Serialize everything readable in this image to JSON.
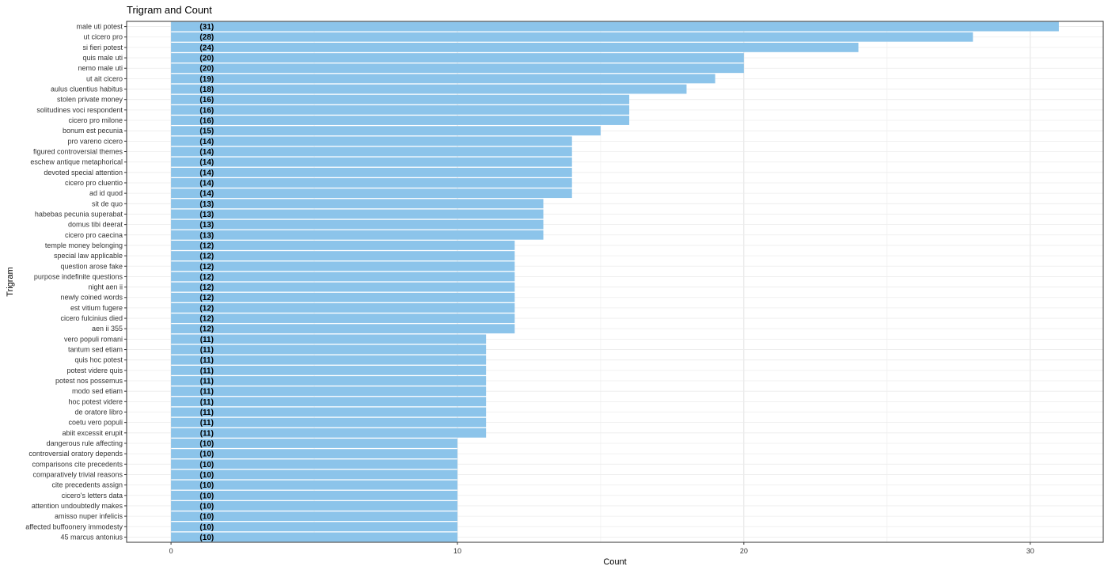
{
  "chart_data": {
    "type": "bar",
    "orientation": "horizontal",
    "title": "Trigram and Count",
    "xlabel": "Count",
    "ylabel": "Trigram",
    "xlim": [
      -1.55,
      32.55
    ],
    "xticks": [
      0,
      10,
      20,
      30
    ],
    "grid": true,
    "bar_color": "#8CC4EA",
    "categories": [
      "male uti potest",
      "ut cicero pro",
      "si fieri potest",
      "quis male uti",
      "nemo male uti",
      "ut ait cicero",
      "aulus cluentius habitus",
      "stolen private money",
      "solitudines voci respondent",
      "cicero pro milone",
      "bonum est pecunia",
      "pro vareno cicero",
      "figured controversial themes",
      "eschew antique metaphorical",
      "devoted special attention",
      "cicero pro cluentio",
      "ad id quod",
      "sit de quo",
      "habebas pecunia superabat",
      "domus tibi deerat",
      "cicero pro caecina",
      "temple money belonging",
      "special law applicable",
      "question arose fake",
      "purpose indefinite questions",
      "night aen ii",
      "newly coined words",
      "est vitium fugere",
      "cicero fulcinius died",
      "aen ii 355",
      "vero populi romani",
      "tantum sed etiam",
      "quis hoc potest",
      "potest videre quis",
      "potest nos possemus",
      "modo sed etiam",
      "hoc potest videre",
      "de oratore libro",
      "coetu vero populi",
      "abiit excessit erupit",
      "dangerous rule affecting",
      "controversial oratory depends",
      "comparisons cite precedents",
      "comparatively trivial reasons",
      "cite precedents assign",
      "cicero's letters data",
      "attention undoubtedly makes",
      "amisso nuper infelicis",
      "affected buffoonery immodesty",
      "45 marcus antonius"
    ],
    "values": [
      31,
      28,
      24,
      20,
      20,
      19,
      18,
      16,
      16,
      16,
      15,
      14,
      14,
      14,
      14,
      14,
      14,
      13,
      13,
      13,
      13,
      12,
      12,
      12,
      12,
      12,
      12,
      12,
      12,
      12,
      11,
      11,
      11,
      11,
      11,
      11,
      11,
      11,
      11,
      11,
      10,
      10,
      10,
      10,
      10,
      10,
      10,
      10,
      10,
      10
    ],
    "data_labels": [
      "(31)",
      "(28)",
      "(24)",
      "(20)",
      "(20)",
      "(19)",
      "(18)",
      "(16)",
      "(16)",
      "(16)",
      "(15)",
      "(14)",
      "(14)",
      "(14)",
      "(14)",
      "(14)",
      "(14)",
      "(13)",
      "(13)",
      "(13)",
      "(13)",
      "(12)",
      "(12)",
      "(12)",
      "(12)",
      "(12)",
      "(12)",
      "(12)",
      "(12)",
      "(12)",
      "(11)",
      "(11)",
      "(11)",
      "(11)",
      "(11)",
      "(11)",
      "(11)",
      "(11)",
      "(11)",
      "(11)",
      "(10)",
      "(10)",
      "(10)",
      "(10)",
      "(10)",
      "(10)",
      "(10)",
      "(10)",
      "(10)",
      "(10)"
    ]
  }
}
